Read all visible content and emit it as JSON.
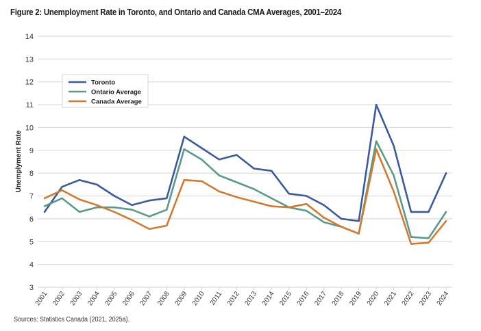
{
  "chart_data": {
    "type": "line",
    "title": "Figure 2: Unemployment Rate in Toronto, and Ontario and Canada CMA Averages, 2001–2024",
    "xlabel": "",
    "ylabel": "Unemplyment Rate",
    "ylim": [
      3,
      14
    ],
    "yticks": [
      "3",
      "4",
      "5",
      "6",
      "7",
      "8",
      "9",
      "10",
      "11",
      "12",
      "13",
      "14"
    ],
    "grid": true,
    "legend_position": "top-left",
    "x": [
      "2001",
      "2002",
      "2003",
      "2004",
      "2005",
      "2006",
      "2007",
      "2008",
      "2009",
      "2010",
      "2011",
      "2012",
      "2013",
      "2014",
      "2015",
      "2016",
      "2017",
      "2018",
      "2019",
      "2020",
      "2021",
      "2022",
      "2023",
      "2024"
    ],
    "series": [
      {
        "name": "Toronto",
        "color": "#3a5a9b",
        "values": [
          6.3,
          7.4,
          7.7,
          7.5,
          7.0,
          6.6,
          6.8,
          6.9,
          9.6,
          9.1,
          8.6,
          8.8,
          8.2,
          8.1,
          7.1,
          7.0,
          6.6,
          6.0,
          5.9,
          11.0,
          9.2,
          6.3,
          6.3,
          8.0
        ]
      },
      {
        "name": "Ontario Average",
        "color": "#5a9a8a",
        "values": [
          6.55,
          6.9,
          6.3,
          6.5,
          6.5,
          6.4,
          6.1,
          6.4,
          9.05,
          8.6,
          7.9,
          7.6,
          7.3,
          6.9,
          6.5,
          6.35,
          5.85,
          5.65,
          5.35,
          9.4,
          7.9,
          5.2,
          5.15,
          6.3
        ]
      },
      {
        "name": "Canada Average",
        "color": "#d07a32",
        "values": [
          6.9,
          7.25,
          6.85,
          6.6,
          6.3,
          5.95,
          5.55,
          5.7,
          7.7,
          7.65,
          7.2,
          6.95,
          6.75,
          6.55,
          6.5,
          6.65,
          6.05,
          5.65,
          5.35,
          9.05,
          7.2,
          4.9,
          4.95,
          5.9
        ]
      }
    ]
  },
  "source": "Sources: Statistics Canada (2021, 2025a)."
}
